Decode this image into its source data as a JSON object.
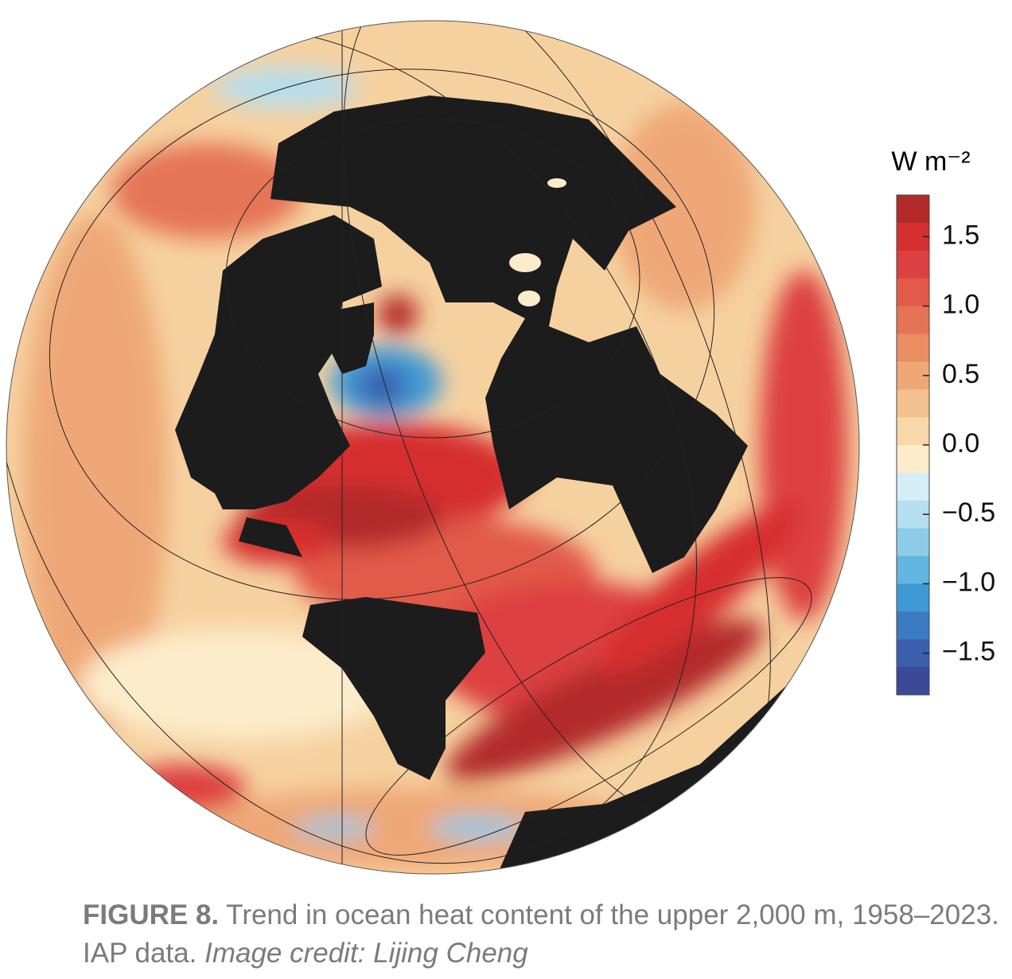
{
  "colorbar": {
    "unit": "W m⁻²",
    "lim": [
      -1.8,
      1.8
    ],
    "colors": [
      "#b22a2a",
      "#d62f2f",
      "#dd4040",
      "#e25a4a",
      "#e57456",
      "#ea8d63",
      "#efa777",
      "#f4c08f",
      "#f8d7a9",
      "#fdeccb",
      "#d4eef8",
      "#b5def0",
      "#8ecbe7",
      "#63b5e2",
      "#3f99d5",
      "#3a7bc3",
      "#3b5fac",
      "#3a4a99"
    ],
    "ticks": [
      1.5,
      {
        "value": 1,
        "label": "1.0"
      },
      {
        "value": 0.5,
        "label": "0.5"
      },
      {
        "value": 0,
        "label": "0.0"
      },
      {
        "value": -0.5,
        "label": "−0.5"
      },
      {
        "value": -1,
        "label": "−1.0"
      },
      {
        "value": -1.5,
        "label": "−1.5"
      }
    ]
  },
  "caption": {
    "label": "FIGURE 8.",
    "text": "Trend in ocean heat content of the upper 2,000 m, 1958–2023. IAP data.",
    "credit": "Image credit: Lijing Cheng"
  }
}
